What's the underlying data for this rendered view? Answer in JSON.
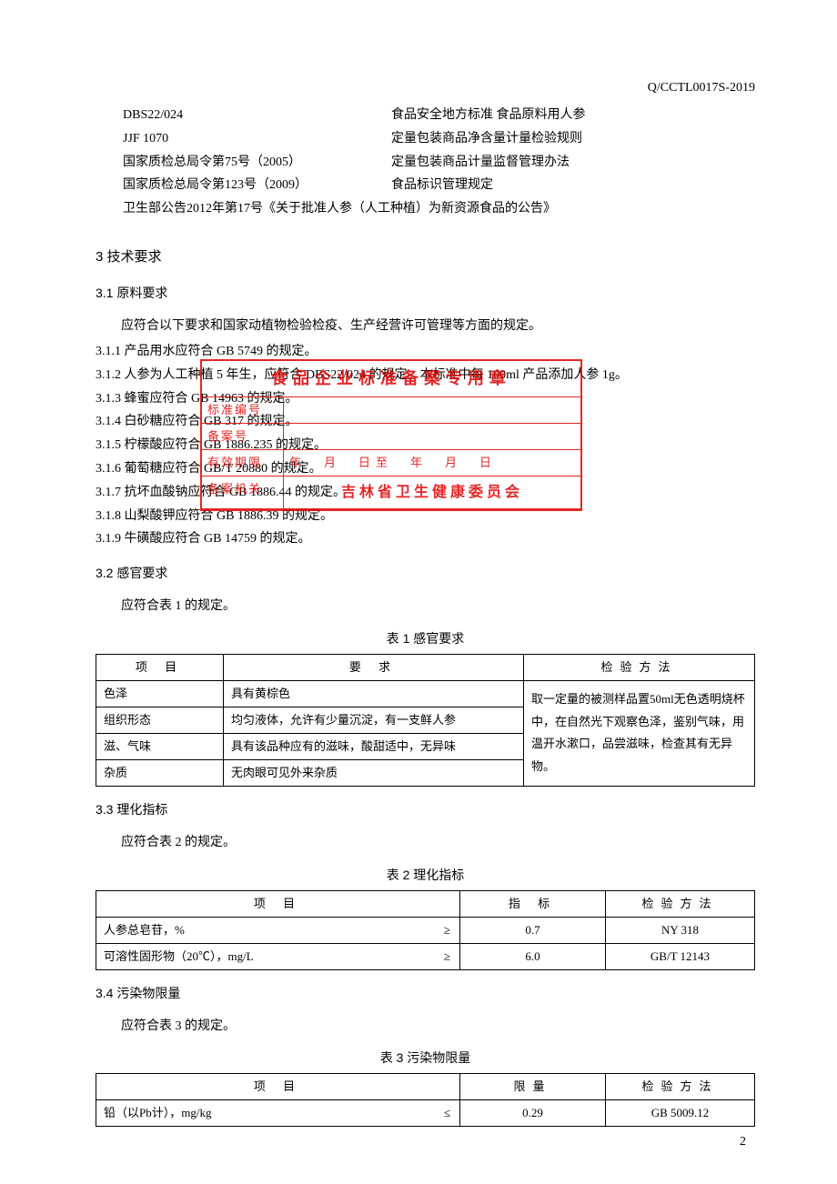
{
  "header_code": "Q/CCTL0017S-2019",
  "page_number": "2",
  "references": [
    {
      "code": "DBS22/024",
      "desc": "食品安全地方标准 食品原料用人参"
    },
    {
      "code": "JJF 1070",
      "desc": "定量包装商品净含量计量检验规则"
    },
    {
      "code": "国家质检总局令第75号（2005）",
      "desc": "定量包装商品计量监督管理办法"
    },
    {
      "code": "国家质检总局令第123号（2009）",
      "desc": "食品标识管理规定"
    },
    {
      "full": "卫生部公告2012年第17号《关于批准人参（人工种植）为新资源食品的公告》"
    }
  ],
  "section3": {
    "title": "3  技术要求",
    "sub1": {
      "title": "3.1  原料要求",
      "intro": "应符合以下要求和国家动植物检验检疫、生产经营许可管理等方面的规定。",
      "items": [
        "3.1.1  产品用水应符合 GB 5749 的规定。",
        "3.1.2  人参为人工种植 5 年生，应符合 DBS22/024 的规定。本标准中每 100ml 产品添加人参 1g。",
        "3.1.3  蜂蜜应符合 GB 14963 的规定。",
        "3.1.4  白砂糖应符合 GB 317 的规定。",
        "3.1.5  柠檬酸应符合 GB 1886.235 的规定。",
        "3.1.6  葡萄糖应符合 GB/T 20880 的规定。",
        "3.1.7  抗坏血酸钠应符合 GB 1886.44 的规定。",
        "3.1.8  山梨酸钾应符合 GB 1886.39 的规定。",
        "3.1.9  牛磺酸应符合 GB 14759 的规定。"
      ]
    },
    "sub2": {
      "title": "3.2  感官要求",
      "intro": "应符合表 1 的规定。",
      "table_title": "表 1  感官要求",
      "headers": [
        "项  目",
        "要  求",
        "检验方法"
      ],
      "rows": [
        [
          "色泽",
          "具有黄棕色"
        ],
        [
          "组织形态",
          "均匀液体，允许有少量沉淀，有一支鲜人参"
        ],
        [
          "滋、气味",
          "具有该品种应有的滋味，酸甜适中，无异味"
        ],
        [
          "杂质",
          "无肉眼可见外来杂质"
        ]
      ],
      "method": "取一定量的被测样品置50ml无色透明烧杯中，在自然光下观察色泽，鉴别气味，用温开水漱口，品尝滋味，检查其有无异物。"
    },
    "sub3": {
      "title": "3.3  理化指标",
      "intro": "应符合表 2 的规定。",
      "table_title": "表 2  理化指标",
      "headers": [
        "项  目",
        "指  标",
        "检验方法"
      ],
      "rows": [
        {
          "name": "人参总皂苷，%",
          "sym": "≥",
          "val": "0.7",
          "method": "NY 318"
        },
        {
          "name": "可溶性固形物（20℃），mg/L",
          "sym": "≥",
          "val": "6.0",
          "method": "GB/T 12143"
        }
      ]
    },
    "sub4": {
      "title": "3.4  污染物限量",
      "intro": "应符合表 3 的规定。",
      "table_title": "表 3  污染物限量",
      "headers": [
        "项  目",
        "限量",
        "检验方法"
      ],
      "rows": [
        {
          "name": "铅（以Pb计），mg/kg",
          "sym": "≤",
          "val": "0.29",
          "method": "GB 5009.12"
        }
      ]
    }
  },
  "stamp": {
    "title": "食品企业标准备案专用章",
    "label1": "标准编号",
    "label2": "备案号",
    "label3": "有效期限",
    "label4": "备案机关",
    "date": "年　月　日至　年　月　日",
    "org": "吉林省卫生健康委员会"
  }
}
